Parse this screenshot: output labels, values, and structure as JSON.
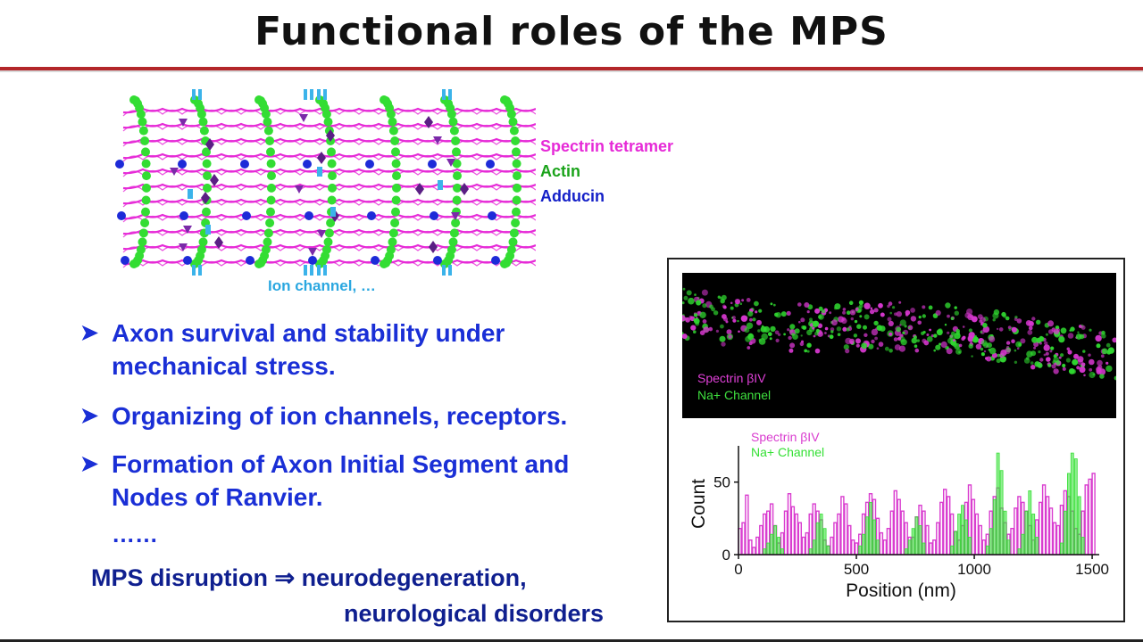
{
  "title": "Functional roles of the MPS",
  "diagram": {
    "legend": [
      {
        "label": "Spectrin tetramer",
        "color": "#e62ad7"
      },
      {
        "label": "Actin",
        "color": "#1aa31a"
      },
      {
        "label": "Adducin",
        "color": "#1420c8"
      }
    ],
    "ion_channel_label": "Ion channel, …",
    "colors": {
      "spectrin": "#e62ad7",
      "actin": "#33dd33",
      "adducin": "#1d2bd8",
      "ion": "#3bb3ea",
      "purple": "#5a1f84"
    }
  },
  "bullets": [
    {
      "lines": [
        "Axon survival and stability under",
        "mechanical stress."
      ]
    },
    {
      "lines": [
        "Organizing of ion channels, receptors."
      ]
    },
    {
      "lines": [
        "Formation of Axon Initial Segment and",
        "Nodes of Ranvier."
      ]
    }
  ],
  "ellipsis": "……",
  "disruption": {
    "line1": "MPS disruption ⇒ neurodegeneration,",
    "line2": "neurological disorders"
  },
  "micrograph": {
    "label_spectrin": "Spectrin βIV",
    "label_channel": "Na+ Channel"
  },
  "chart_data": {
    "type": "bar",
    "xlabel": "Position (nm)",
    "ylabel": "Count",
    "xlim": [
      0,
      1530
    ],
    "ylim": [
      0,
      75
    ],
    "xticks": [
      0,
      500,
      1000,
      1500
    ],
    "yticks": [
      0,
      50
    ],
    "bin_width": 15,
    "series": [
      {
        "name": "Spectrin βIV",
        "color": "#d93ccf",
        "values": [
          18,
          22,
          41,
          10,
          5,
          12,
          20,
          28,
          30,
          35,
          20,
          8,
          15,
          30,
          42,
          33,
          28,
          22,
          12,
          15,
          28,
          35,
          30,
          24,
          10,
          6,
          12,
          22,
          28,
          40,
          35,
          20,
          10,
          8,
          14,
          28,
          36,
          42,
          38,
          25,
          15,
          10,
          18,
          30,
          44,
          38,
          30,
          22,
          12,
          12,
          26,
          34,
          30,
          20,
          8,
          10,
          22,
          36,
          45,
          40,
          28,
          16,
          10,
          20,
          36,
          48,
          38,
          28,
          20,
          10,
          14,
          30,
          40,
          46,
          32,
          22,
          14,
          18,
          32,
          40,
          36,
          30,
          20,
          10,
          24,
          36,
          48,
          40,
          32,
          22,
          20,
          34,
          44,
          40,
          30,
          18,
          14,
          30,
          48,
          52,
          56
        ]
      },
      {
        "name": "Na+ Channel",
        "color": "#35e035",
        "values": [
          0,
          0,
          0,
          0,
          0,
          0,
          0,
          4,
          8,
          14,
          20,
          12,
          4,
          0,
          0,
          0,
          0,
          0,
          0,
          0,
          4,
          10,
          22,
          28,
          18,
          6,
          0,
          0,
          0,
          0,
          0,
          0,
          0,
          0,
          6,
          14,
          26,
          36,
          24,
          10,
          0,
          0,
          0,
          0,
          0,
          0,
          0,
          4,
          10,
          18,
          26,
          20,
          8,
          0,
          0,
          0,
          0,
          0,
          0,
          0,
          6,
          16,
          28,
          34,
          24,
          12,
          0,
          0,
          0,
          0,
          6,
          18,
          38,
          70,
          58,
          30,
          10,
          0,
          0,
          4,
          14,
          30,
          44,
          28,
          12,
          0,
          0,
          0,
          0,
          0,
          0,
          8,
          30,
          56,
          70,
          66,
          40,
          12,
          0,
          0,
          0
        ]
      }
    ]
  }
}
